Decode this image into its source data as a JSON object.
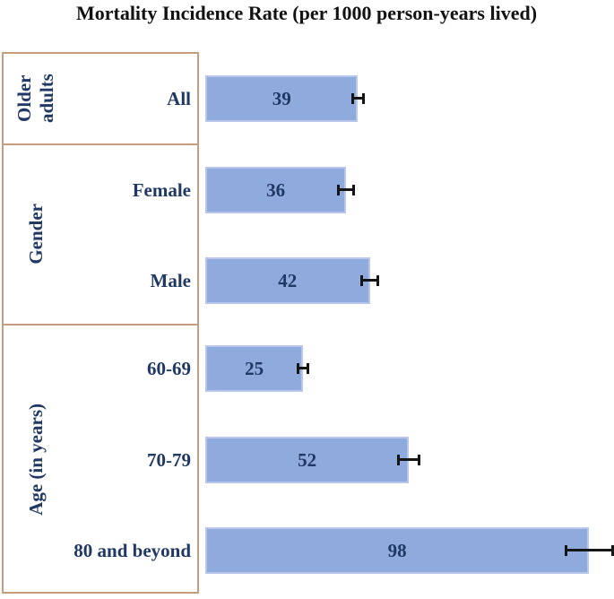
{
  "chart_data": {
    "type": "bar",
    "orientation": "horizontal",
    "title": "Mortality Incidence Rate (per 1000 person-years lived)",
    "x_axis_visible": false,
    "grid": false,
    "xlim": [
      0,
      104
    ],
    "value_labels_position": "center",
    "error_bars": true,
    "groups": [
      {
        "label": "Older adults",
        "categories": [
          {
            "label": "All",
            "value": 39,
            "error": 1.7
          }
        ]
      },
      {
        "label": "Gender",
        "categories": [
          {
            "label": "Female",
            "value": 36,
            "error": 2.3
          },
          {
            "label": "Male",
            "value": 42,
            "error": 2.5
          }
        ]
      },
      {
        "label": "Age (in years)",
        "categories": [
          {
            "label": "60-69",
            "value": 25,
            "error": 1.6
          },
          {
            "label": "70-79",
            "value": 52,
            "error": 3
          },
          {
            "label": "80 and beyond",
            "value": 98,
            "error": 6.3
          }
        ]
      }
    ],
    "categories": [
      "All",
      "Female",
      "Male",
      "60-69",
      "70-79",
      "80 and beyond"
    ],
    "values": [
      39,
      36,
      42,
      25,
      52,
      98
    ],
    "colors": {
      "bar_fill": "#8FAADC",
      "bar_border": "#B7C6EA",
      "label_text": "#1F3864",
      "panel_border": "#C59C7E",
      "error_bar": "#151515",
      "title_text": "#121212"
    }
  }
}
